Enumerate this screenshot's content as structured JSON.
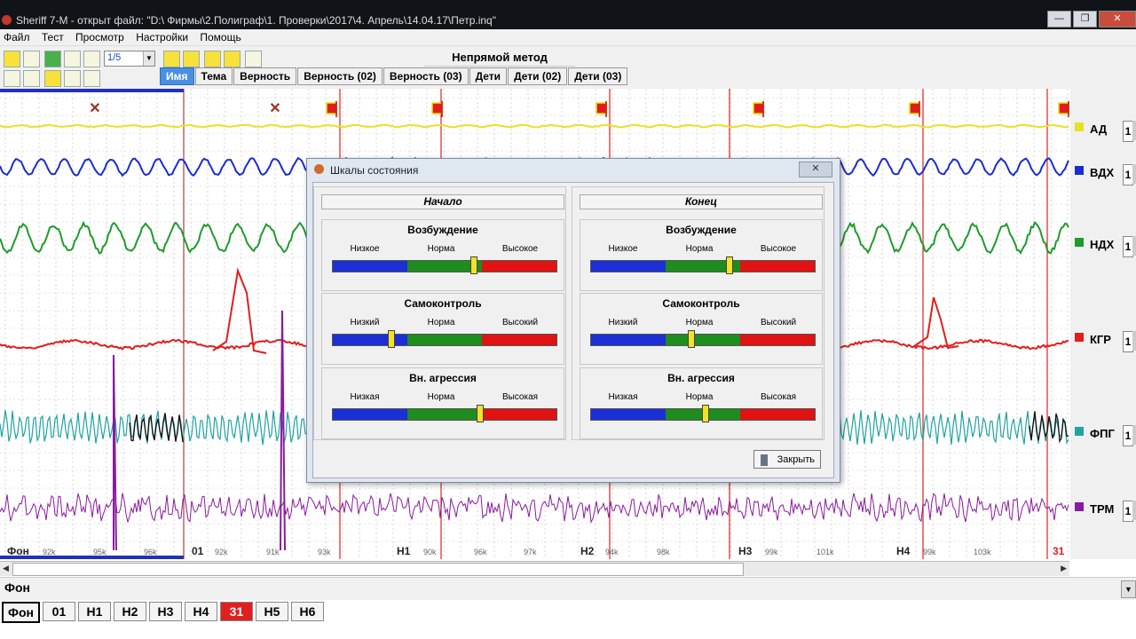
{
  "window": {
    "title": "Sheriff 7-M - открыт файл: \"D:\\ Фирмы\\2.Полиграф\\1. Проверки\\2017\\4. Апрель\\14.04.17\\Петр.inq\"",
    "btn_min": "—",
    "btn_max": "❐",
    "btn_close": "✕"
  },
  "menu": [
    "Файл",
    "Тест",
    "Просмотр",
    "Настройки",
    "Помощь"
  ],
  "toolbar": {
    "zoom": "1/5",
    "zoom_arrow": "▼"
  },
  "method_title": "Непрямой метод",
  "question_tabs": [
    "Имя",
    "Тема",
    "Верность",
    "Верность (02)",
    "Верность (03)",
    "Дети",
    "Дети (02)",
    "Дети (03)"
  ],
  "channels": [
    {
      "label": "АД",
      "num": "1",
      "color": "#e8e027"
    },
    {
      "label": "ВДХ",
      "num": "1",
      "color": "#1a2cd1"
    },
    {
      "label": "НДХ",
      "num": "1",
      "color": "#1e9b2a"
    },
    {
      "label": "КГР",
      "num": "1",
      "color": "#e31c1c"
    },
    {
      "label": "ФПГ",
      "num": "1",
      "color": "#1fa3a3"
    },
    {
      "label": "ТРМ",
      "num": "1",
      "color": "#8a1aa0"
    }
  ],
  "marks": [
    {
      "label": "Фон",
      "type": "x"
    },
    {
      "label": "01",
      "type": "x"
    },
    {
      "label": "Н1",
      "type": "flag"
    },
    {
      "label": "Н2",
      "type": "flag"
    },
    {
      "label": "Н3",
      "type": "flag"
    },
    {
      "label": "Н4",
      "type": "flag"
    },
    {
      "label": "31",
      "type": "flag"
    }
  ],
  "time_labels": [
    "92k",
    "95k",
    "96k",
    "92k",
    "91k",
    "93k",
    "90k",
    "96k",
    "97k",
    "94k",
    "98k",
    "99k",
    "101k",
    "99k",
    "103k"
  ],
  "info": {
    "text": "Фон",
    "dd": "▼"
  },
  "segment_tabs": [
    "Фон",
    "01",
    "Н1",
    "Н2",
    "Н3",
    "Н4",
    "31",
    "Н5",
    "Н6"
  ],
  "dialog": {
    "title": "Шкалы состояния",
    "close_x": "✕",
    "start_head": "Начало",
    "end_head": "Конец",
    "scales": [
      {
        "name": "Возбуждение",
        "low": "Низкое",
        "mid": "Норма",
        "high": "Высокое",
        "start": 0.63,
        "end": 0.62
      },
      {
        "name": "Самоконтроль",
        "low": "Низкий",
        "mid": "Норма",
        "high": "Высокий",
        "start": 0.26,
        "end": 0.45
      },
      {
        "name": "Вн. агрессия",
        "low": "Низкая",
        "mid": "Норма",
        "high": "Высокая",
        "start": 0.66,
        "end": 0.51
      }
    ],
    "close_label": "Закрыть"
  }
}
